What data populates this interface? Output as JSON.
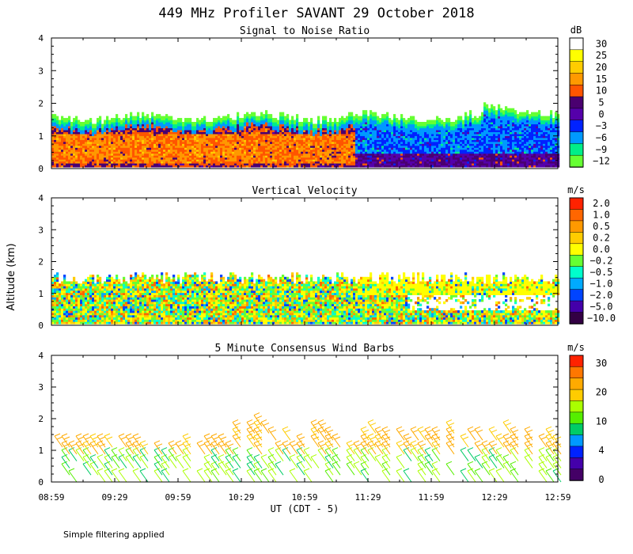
{
  "title": "449 MHz Profiler SAVANT 29 October 2018",
  "ylabel": "Altitude (km)",
  "xlabel": "UT  (CDT - 5)",
  "note": "Simple filtering applied",
  "x_ticks": [
    "08:59",
    "09:29",
    "09:59",
    "10:29",
    "10:59",
    "11:29",
    "11:59",
    "12:29",
    "12:59"
  ],
  "y_ticks": [
    "0",
    "1",
    "2",
    "3",
    "4"
  ],
  "chart_data": [
    {
      "type": "heatmap",
      "title": "Signal to Noise Ratio",
      "units": "dB",
      "ylim": [
        0,
        4
      ],
      "colorbar": {
        "labels": [
          "30",
          "25",
          "20",
          "15",
          "10",
          "5",
          "0",
          "−3",
          "−6",
          "−9",
          "−12"
        ],
        "colors": [
          "#ffffff",
          "#ffff00",
          "#ffcc00",
          "#ff9900",
          "#ff5500",
          "#4a0070",
          "#5500aa",
          "#0022ff",
          "#0099ff",
          "#00ee88",
          "#66ff33"
        ]
      }
    },
    {
      "type": "heatmap",
      "title": "Vertical Velocity",
      "units": "m/s",
      "ylim": [
        0,
        4
      ],
      "colorbar": {
        "labels": [
          "2.0",
          "1.0",
          "0.5",
          "0.2",
          "0.0",
          "−0.2",
          "−0.5",
          "−1.0",
          "−2.0",
          "−5.0",
          "−10.0"
        ],
        "colors": [
          "#ff2200",
          "#ff6600",
          "#ff9900",
          "#ffcc00",
          "#ffff00",
          "#66ff33",
          "#00ffcc",
          "#00aaff",
          "#0044ff",
          "#4400aa",
          "#330044"
        ]
      }
    },
    {
      "type": "scatter",
      "title": "5 Minute Consensus Wind Barbs",
      "units": "m/s",
      "ylim": [
        0,
        4
      ],
      "colorbar": {
        "labels": [
          "30",
          "20",
          "10",
          "4",
          "0"
        ],
        "colors": [
          "#ff2200",
          "#ff7700",
          "#ffaa00",
          "#ffcc00",
          "#aaff00",
          "#55ee00",
          "#00cc66",
          "#0099ff",
          "#0022ff",
          "#4400aa",
          "#440066"
        ]
      }
    }
  ]
}
